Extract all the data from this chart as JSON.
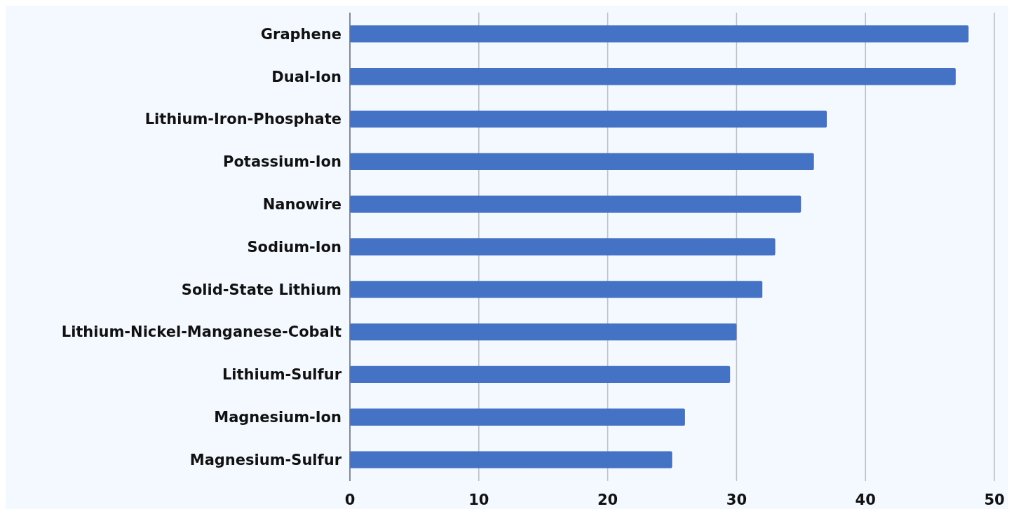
{
  "chart_data": {
    "type": "bar",
    "orientation": "horizontal",
    "categories": [
      "Graphene",
      "Dual-Ion",
      "Lithium-Iron-Phosphate",
      "Potassium-Ion",
      "Nanowire",
      "Sodium-Ion",
      "Solid-State Lithium",
      "Lithium-Nickel-Manganese-Cobalt",
      "Lithium-Sulfur",
      "Magnesium-Ion",
      "Magnesium-Sulfur"
    ],
    "values": [
      48,
      47,
      37,
      36,
      35,
      33,
      32,
      30,
      29.5,
      26,
      25
    ],
    "color": "#4472c4",
    "xlim": [
      0,
      50
    ],
    "xticks": [
      0,
      10,
      20,
      30,
      40,
      50
    ],
    "grid": "x"
  }
}
